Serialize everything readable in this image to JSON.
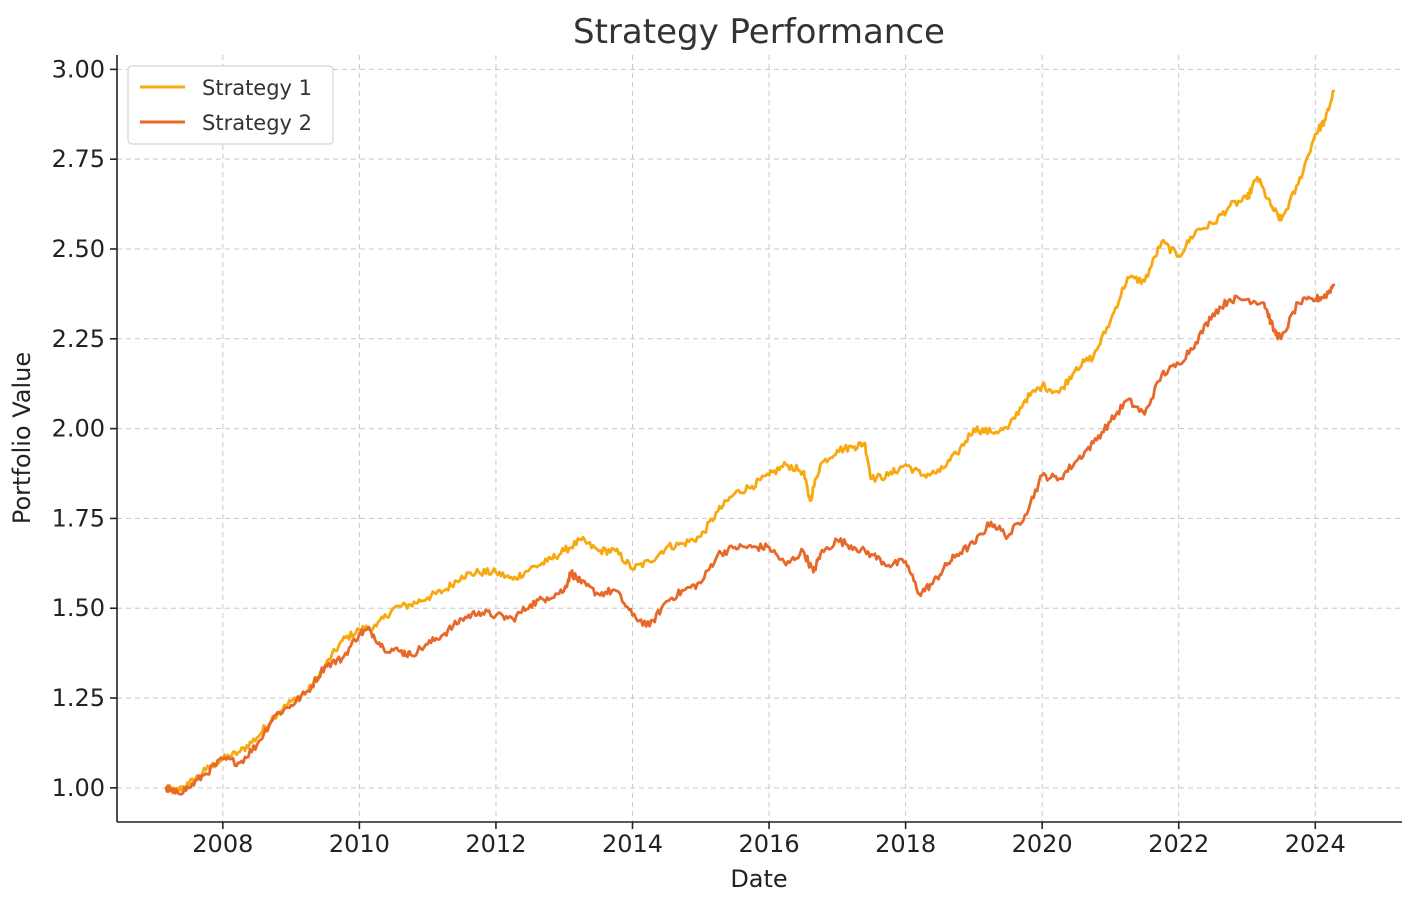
{
  "colors": {
    "strategy_1": "#f7a90f",
    "strategy_2": "#e8682a"
  },
  "chart_data": {
    "type": "line",
    "title": "Strategy Performance",
    "xlabel": "Date",
    "ylabel": "Portfolio Value",
    "xlim": [
      2006.45,
      2025.27
    ],
    "ylim": [
      0.905,
      3.04
    ],
    "x_ticks": [
      2008,
      2010,
      2012,
      2014,
      2016,
      2018,
      2020,
      2022,
      2024
    ],
    "x_tick_labels": [
      "2008",
      "2010",
      "2012",
      "2014",
      "2016",
      "2018",
      "2020",
      "2022",
      "2024"
    ],
    "y_ticks": [
      1.0,
      1.25,
      1.5,
      1.75,
      2.0,
      2.25,
      2.5,
      2.75,
      3.0
    ],
    "y_tick_labels": [
      "1.00",
      "1.25",
      "1.50",
      "1.75",
      "2.00",
      "2.25",
      "2.50",
      "2.75",
      "3.00"
    ],
    "grid": true,
    "legend_position": "top-left",
    "series": [
      {
        "name": "Strategy 1",
        "color": "#f7a90f",
        "x": [
          2007.17,
          2007.3,
          2007.5,
          2007.75,
          2008.0,
          2008.25,
          2008.5,
          2008.75,
          2009.0,
          2009.25,
          2009.5,
          2009.75,
          2010.0,
          2010.25,
          2010.5,
          2010.75,
          2011.0,
          2011.25,
          2011.5,
          2011.75,
          2012.0,
          2012.25,
          2012.5,
          2012.75,
          2013.0,
          2013.25,
          2013.5,
          2013.75,
          2014.0,
          2014.25,
          2014.5,
          2014.75,
          2015.0,
          2015.25,
          2015.5,
          2015.75,
          2016.0,
          2016.25,
          2016.5,
          2016.6,
          2016.75,
          2017.0,
          2017.25,
          2017.4,
          2017.5,
          2017.75,
          2018.0,
          2018.25,
          2018.5,
          2018.75,
          2019.0,
          2019.25,
          2019.5,
          2019.75,
          2020.0,
          2020.25,
          2020.5,
          2020.75,
          2021.0,
          2021.25,
          2021.5,
          2021.75,
          2022.0,
          2022.25,
          2022.5,
          2022.75,
          2023.0,
          2023.15,
          2023.35,
          2023.5,
          2023.75,
          2024.0,
          2024.15,
          2024.27
        ],
        "values": [
          1.0,
          0.99,
          1.01,
          1.05,
          1.08,
          1.1,
          1.14,
          1.2,
          1.24,
          1.27,
          1.34,
          1.41,
          1.44,
          1.45,
          1.5,
          1.51,
          1.53,
          1.55,
          1.59,
          1.6,
          1.6,
          1.58,
          1.61,
          1.63,
          1.66,
          1.69,
          1.66,
          1.66,
          1.61,
          1.63,
          1.67,
          1.68,
          1.7,
          1.77,
          1.82,
          1.84,
          1.87,
          1.9,
          1.88,
          1.8,
          1.9,
          1.94,
          1.95,
          1.96,
          1.86,
          1.87,
          1.9,
          1.87,
          1.88,
          1.93,
          2.0,
          1.99,
          2.0,
          2.08,
          2.12,
          2.1,
          2.17,
          2.2,
          2.3,
          2.42,
          2.41,
          2.52,
          2.48,
          2.55,
          2.57,
          2.62,
          2.64,
          2.7,
          2.62,
          2.58,
          2.68,
          2.82,
          2.86,
          2.94
        ]
      },
      {
        "name": "Strategy 2",
        "color": "#e8682a",
        "x": [
          2007.17,
          2007.3,
          2007.5,
          2007.75,
          2008.0,
          2008.25,
          2008.5,
          2008.75,
          2009.0,
          2009.25,
          2009.5,
          2009.75,
          2010.0,
          2010.15,
          2010.35,
          2010.6,
          2010.75,
          2011.0,
          2011.25,
          2011.5,
          2011.75,
          2012.0,
          2012.25,
          2012.5,
          2012.75,
          2013.0,
          2013.1,
          2013.25,
          2013.5,
          2013.75,
          2014.0,
          2014.25,
          2014.5,
          2014.75,
          2015.0,
          2015.25,
          2015.5,
          2015.75,
          2016.0,
          2016.25,
          2016.5,
          2016.65,
          2016.75,
          2017.0,
          2017.25,
          2017.5,
          2017.75,
          2018.0,
          2018.2,
          2018.4,
          2018.6,
          2018.75,
          2019.0,
          2019.25,
          2019.5,
          2019.75,
          2020.0,
          2020.25,
          2020.5,
          2020.75,
          2021.0,
          2021.25,
          2021.5,
          2021.75,
          2022.0,
          2022.25,
          2022.5,
          2022.75,
          2023.0,
          2023.25,
          2023.4,
          2023.5,
          2023.75,
          2024.0,
          2024.15,
          2024.27
        ],
        "values": [
          1.0,
          0.985,
          1.0,
          1.04,
          1.08,
          1.07,
          1.12,
          1.2,
          1.23,
          1.27,
          1.34,
          1.36,
          1.43,
          1.44,
          1.39,
          1.38,
          1.37,
          1.4,
          1.43,
          1.47,
          1.49,
          1.48,
          1.47,
          1.51,
          1.53,
          1.55,
          1.6,
          1.57,
          1.54,
          1.55,
          1.48,
          1.45,
          1.52,
          1.55,
          1.57,
          1.65,
          1.67,
          1.67,
          1.67,
          1.62,
          1.66,
          1.6,
          1.65,
          1.69,
          1.67,
          1.65,
          1.62,
          1.63,
          1.54,
          1.57,
          1.62,
          1.65,
          1.68,
          1.74,
          1.7,
          1.76,
          1.87,
          1.86,
          1.91,
          1.96,
          2.02,
          2.08,
          2.04,
          2.15,
          2.18,
          2.24,
          2.32,
          2.36,
          2.36,
          2.35,
          2.27,
          2.25,
          2.35,
          2.36,
          2.37,
          2.4
        ]
      }
    ]
  }
}
